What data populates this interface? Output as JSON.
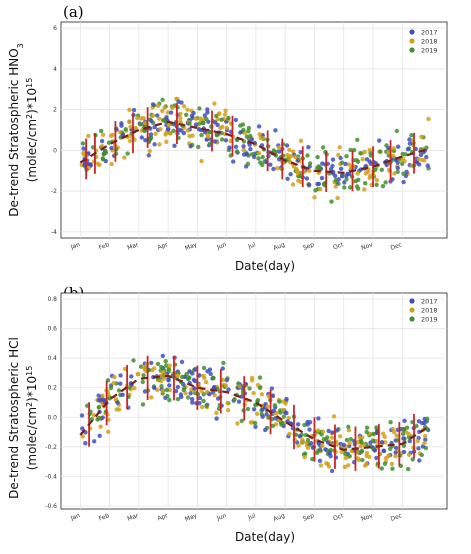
{
  "chart_data": [
    {
      "type": "scatter",
      "panel": "(a)",
      "ylabel_line1": "De-trend Stratospheric HNO",
      "ylabel_sub": "3",
      "ylabel_line2_a": "(molec/cm",
      "ylabel_line2_sup": "2",
      "ylabel_line2_b": ")*10",
      "ylabel_line2_exp": "15",
      "xlabel": "Date(day)",
      "ylim": [
        -4.3,
        6.3
      ],
      "yticks": [
        -4,
        -2,
        0,
        2,
        4,
        6
      ],
      "xticks": [
        "Jan",
        "Feb",
        "Mar",
        "Apr",
        "May",
        "Jun",
        "Jul",
        "Aug",
        "Sep",
        "Oct",
        "Nov",
        "Dec"
      ],
      "legend": [
        "2017",
        "2018",
        "2019"
      ],
      "series_colors": [
        "#3f4fbf",
        "#d4a017",
        "#3f8f2f"
      ],
      "profile": [
        -0.6,
        0.3,
        1.0,
        1.4,
        1.1,
        0.8,
        0.3,
        -0.5,
        -1.0,
        -1.1,
        -0.8,
        -0.3,
        0.1
      ],
      "spread": 1.0,
      "errbar_x": [
        0.2,
        0.5,
        1.2,
        1.8,
        2.3,
        3.3,
        4.5,
        5.2,
        6.4,
        6.9,
        7.6,
        8.4,
        9.3,
        10.0,
        10.6,
        11.4
      ],
      "errbar_half": 1.0
    },
    {
      "type": "scatter",
      "panel": "(b)",
      "ylabel_line1": "De-trend Stratospheric HCl",
      "ylabel_line2_a": "(molec/cm",
      "ylabel_line2_sup": "2",
      "ylabel_line2_b": ")*10",
      "ylabel_line2_exp": "15",
      "xlabel": "Date(day)",
      "ylim": [
        -0.62,
        0.84
      ],
      "yticks": [
        -0.6,
        -0.4,
        -0.2,
        0.0,
        0.2,
        0.4,
        0.6,
        0.8
      ],
      "xticks": [
        "Jan",
        "Feb",
        "Mar",
        "Apr",
        "May",
        "Jun",
        "Jul",
        "Aug",
        "Sep",
        "Oct",
        "Nov",
        "Dec"
      ],
      "legend": [
        "2017",
        "2018",
        "2019"
      ],
      "series_colors": [
        "#3f4fbf",
        "#d4a017",
        "#3f8f2f"
      ],
      "profile": [
        -0.12,
        0.12,
        0.26,
        0.28,
        0.2,
        0.17,
        0.1,
        -0.03,
        -0.15,
        -0.22,
        -0.2,
        -0.18,
        -0.05
      ],
      "spread": 0.14,
      "errbar_x": [
        0.3,
        0.9,
        1.6,
        2.3,
        3.2,
        4.0,
        4.8,
        5.6,
        6.5,
        7.3,
        8.0,
        8.7,
        9.4,
        10.2,
        10.9,
        11.4
      ],
      "errbar_half": 0.15
    }
  ]
}
